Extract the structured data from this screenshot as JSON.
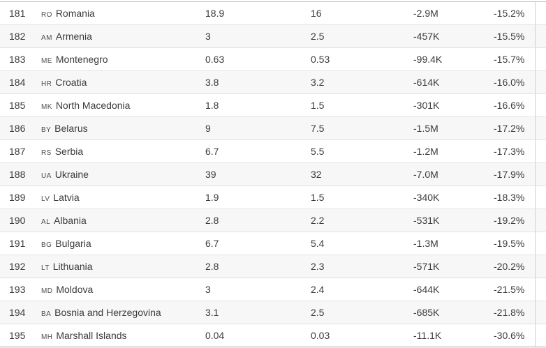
{
  "table": {
    "rows": [
      {
        "rank": "181",
        "code": "RO",
        "name": "Romania",
        "v1": "18.9",
        "v2": "16",
        "change": "-2.9M",
        "pct": "-15.2%"
      },
      {
        "rank": "182",
        "code": "AM",
        "name": "Armenia",
        "v1": "3",
        "v2": "2.5",
        "change": "-457K",
        "pct": "-15.5%"
      },
      {
        "rank": "183",
        "code": "ME",
        "name": "Montenegro",
        "v1": "0.63",
        "v2": "0.53",
        "change": "-99.4K",
        "pct": "-15.7%"
      },
      {
        "rank": "184",
        "code": "HR",
        "name": "Croatia",
        "v1": "3.8",
        "v2": "3.2",
        "change": "-614K",
        "pct": "-16.0%"
      },
      {
        "rank": "185",
        "code": "MK",
        "name": "North Macedonia",
        "v1": "1.8",
        "v2": "1.5",
        "change": "-301K",
        "pct": "-16.6%"
      },
      {
        "rank": "186",
        "code": "BY",
        "name": "Belarus",
        "v1": "9",
        "v2": "7.5",
        "change": "-1.5M",
        "pct": "-17.2%"
      },
      {
        "rank": "187",
        "code": "RS",
        "name": "Serbia",
        "v1": "6.7",
        "v2": "5.5",
        "change": "-1.2M",
        "pct": "-17.3%"
      },
      {
        "rank": "188",
        "code": "UA",
        "name": "Ukraine",
        "v1": "39",
        "v2": "32",
        "change": "-7.0M",
        "pct": "-17.9%"
      },
      {
        "rank": "189",
        "code": "LV",
        "name": "Latvia",
        "v1": "1.9",
        "v2": "1.5",
        "change": "-340K",
        "pct": "-18.3%"
      },
      {
        "rank": "190",
        "code": "AL",
        "name": "Albania",
        "v1": "2.8",
        "v2": "2.2",
        "change": "-531K",
        "pct": "-19.2%"
      },
      {
        "rank": "191",
        "code": "BG",
        "name": "Bulgaria",
        "v1": "6.7",
        "v2": "5.4",
        "change": "-1.3M",
        "pct": "-19.5%"
      },
      {
        "rank": "192",
        "code": "LT",
        "name": "Lithuania",
        "v1": "2.8",
        "v2": "2.3",
        "change": "-571K",
        "pct": "-20.2%"
      },
      {
        "rank": "193",
        "code": "MD",
        "name": "Moldova",
        "v1": "3",
        "v2": "2.4",
        "change": "-644K",
        "pct": "-21.5%"
      },
      {
        "rank": "194",
        "code": "BA",
        "name": "Bosnia and Herzegovina",
        "v1": "3.1",
        "v2": "2.5",
        "change": "-685K",
        "pct": "-21.8%"
      },
      {
        "rank": "195",
        "code": "MH",
        "name": "Marshall Islands",
        "v1": "0.04",
        "v2": "0.03",
        "change": "-11.1K",
        "pct": "-30.6%"
      }
    ]
  },
  "colors": {
    "row_alt_background": "#f7f7f7",
    "row_border": "#e2e2e2",
    "text": "#3b3b3b",
    "top_border": "#bdbdbd",
    "bottom_border": "#a5a5a5"
  }
}
